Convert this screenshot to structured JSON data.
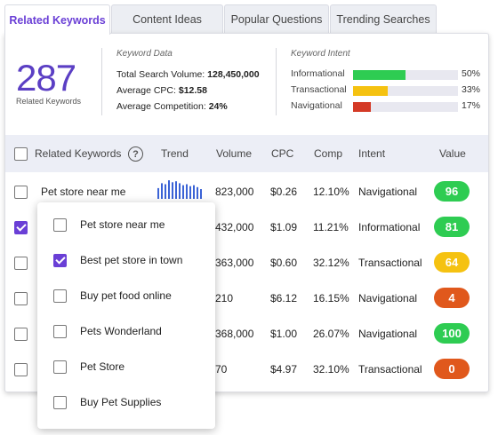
{
  "tabs": [
    {
      "label": "Related Keywords",
      "active": true
    },
    {
      "label": "Content Ideas",
      "active": false
    },
    {
      "label": "Popular Questions",
      "active": false
    },
    {
      "label": "Trending Searches",
      "active": false
    }
  ],
  "summary": {
    "count": "287",
    "count_label": "Related Keywords",
    "keyword_data": {
      "title": "Keyword Data",
      "total_search_volume_label": "Total Search Volume:",
      "total_search_volume": "128,450,000",
      "avg_cpc_label": "Average CPC:",
      "avg_cpc": "$12.58",
      "avg_competition_label": "Average Competition:",
      "avg_competition": "24%"
    },
    "keyword_intent": {
      "title": "Keyword Intent",
      "items": [
        {
          "name": "Informational",
          "pct": "50%",
          "fraction": 0.5,
          "color": "#2ecc52"
        },
        {
          "name": "Transactional",
          "pct": "33%",
          "fraction": 0.33,
          "color": "#f5c211"
        },
        {
          "name": "Navigational",
          "pct": "17%",
          "fraction": 0.17,
          "color": "#d43a26"
        }
      ]
    }
  },
  "table": {
    "headers": {
      "keyword": "Related Keywords",
      "trend": "Trend",
      "volume": "Volume",
      "cpc": "CPC",
      "comp": "Comp",
      "intent": "Intent",
      "value": "Value"
    },
    "help_icon": "?",
    "rows": [
      {
        "keyword": "Pet store near me",
        "checked": false,
        "volume": "823,000",
        "cpc": "$0.26",
        "comp": "12.10%",
        "intent": "Navigational",
        "value": "96",
        "value_color": "#2ecc52"
      },
      {
        "keyword": "",
        "checked": true,
        "volume": "432,000",
        "cpc": "$1.09",
        "comp": "11.21%",
        "intent": "Informational",
        "value": "81",
        "value_color": "#2ecc52"
      },
      {
        "keyword": "",
        "checked": false,
        "volume": "363,000",
        "cpc": "$0.60",
        "comp": "32.12%",
        "intent": "Transactional",
        "value": "64",
        "value_color": "#f5c211"
      },
      {
        "keyword": "",
        "checked": false,
        "volume": "210",
        "cpc": "$6.12",
        "comp": "16.15%",
        "intent": "Navigational",
        "value": "4",
        "value_color": "#e0581c"
      },
      {
        "keyword": "",
        "checked": false,
        "volume": "368,000",
        "cpc": "$1.00",
        "comp": "26.07%",
        "intent": "Navigational",
        "value": "100",
        "value_color": "#2ecc52"
      },
      {
        "keyword": "",
        "checked": false,
        "volume": "70",
        "cpc": "$4.97",
        "comp": "32.10%",
        "intent": "Transactional",
        "value": "0",
        "value_color": "#e0581c"
      }
    ],
    "trend_bars": [
      0.55,
      0.8,
      0.75,
      0.95,
      0.85,
      0.9,
      0.8,
      0.7,
      0.75,
      0.65,
      0.7,
      0.6,
      0.5
    ],
    "trend_color": "#3b63d6"
  },
  "dropdown": {
    "items": [
      {
        "label": "Pet store near me",
        "checked": false
      },
      {
        "label": "Best pet store in town",
        "checked": true
      },
      {
        "label": "Buy pet food online",
        "checked": false
      },
      {
        "label": "Pets Wonderland",
        "checked": false
      },
      {
        "label": "Pet Store",
        "checked": false
      },
      {
        "label": "Buy Pet Supplies",
        "checked": false
      }
    ]
  }
}
